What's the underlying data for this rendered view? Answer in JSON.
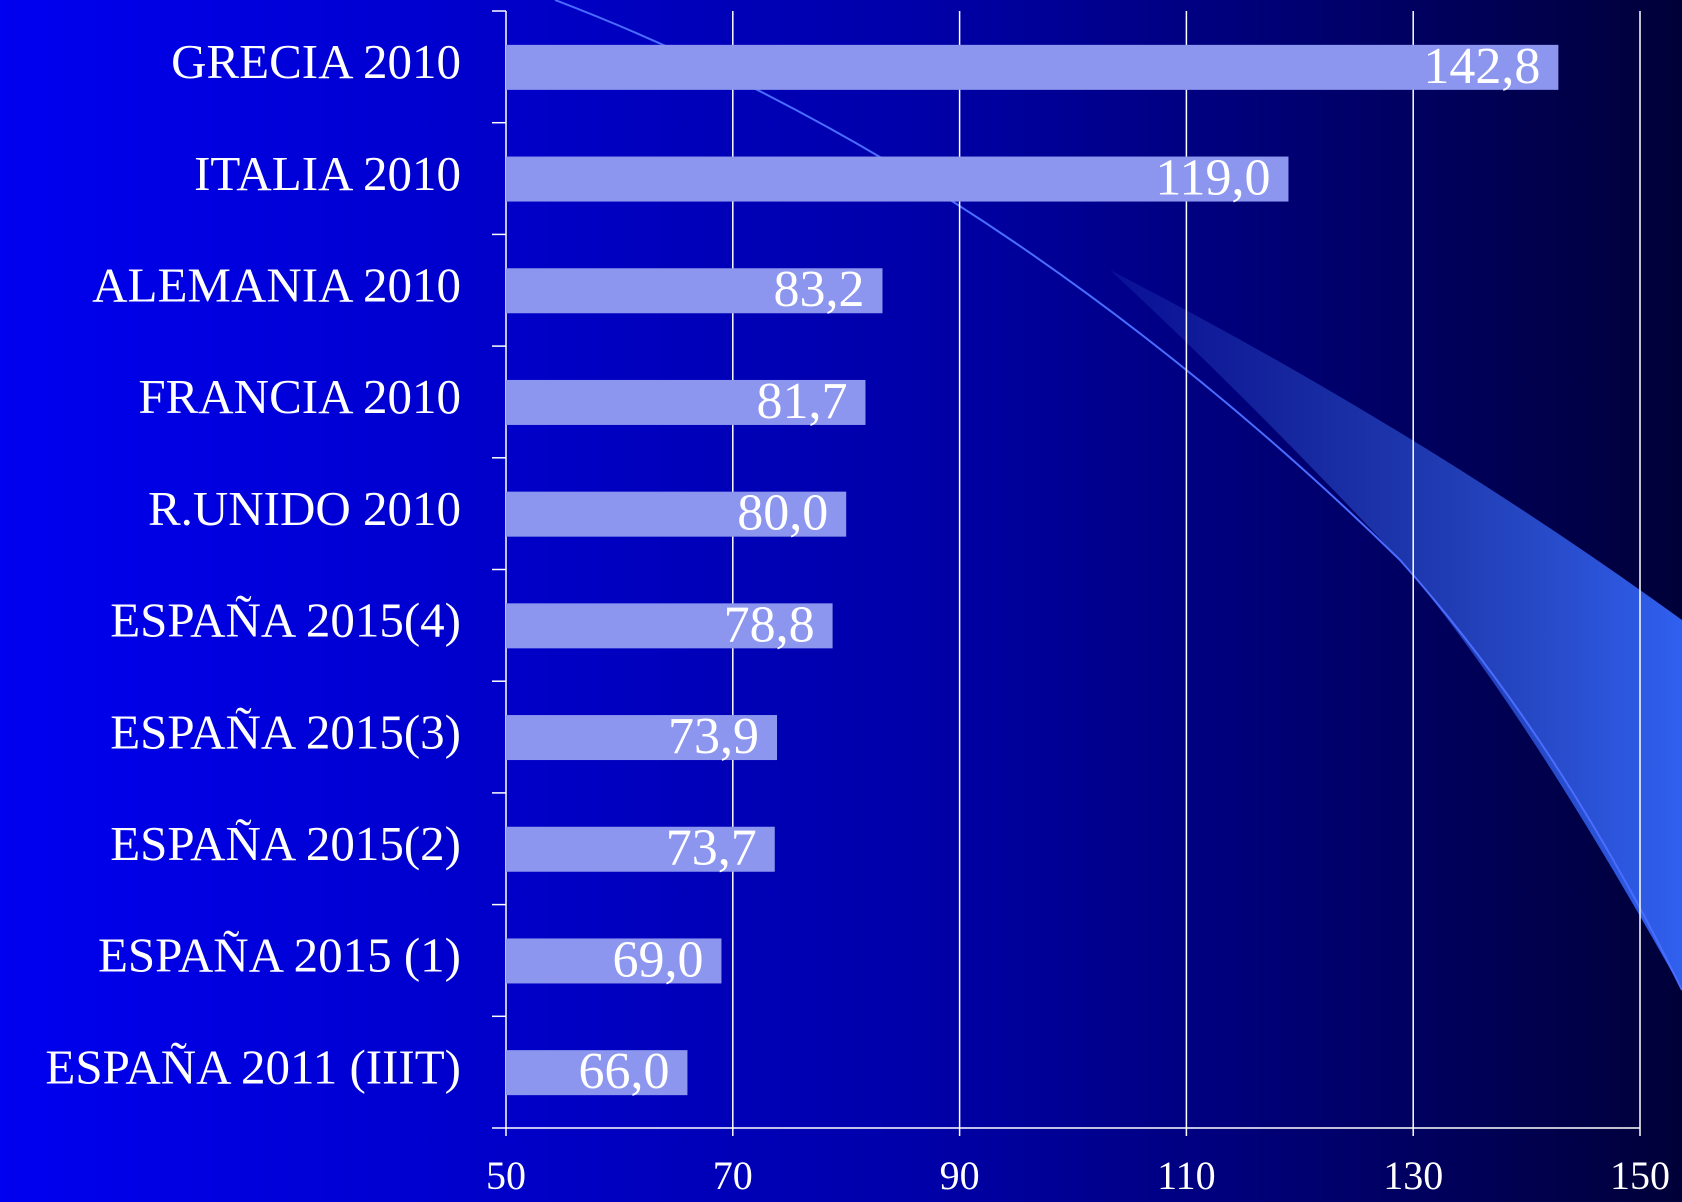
{
  "chart_data": {
    "type": "bar",
    "orientation": "horizontal",
    "categories": [
      "GRECIA 2010",
      "ITALIA 2010",
      "ALEMANIA 2010",
      "FRANCIA 2010",
      "R.UNIDO 2010",
      "ESPAÑA 2015(4)",
      "ESPAÑA 2015(3)",
      "ESPAÑA 2015(2)",
      "ESPAÑA 2015 (1)",
      "ESPAÑA 2011 (IIIT)"
    ],
    "values": [
      142.8,
      119.0,
      83.2,
      81.7,
      80.0,
      78.8,
      73.9,
      73.7,
      69.0,
      66.0
    ],
    "value_labels": [
      "142,8",
      "119,0",
      "83,2",
      "81,7",
      "80,0",
      "78,8",
      "73,9",
      "73,7",
      "69,0",
      "66,0"
    ],
    "color": "#8c96ee",
    "xlim": [
      50,
      150
    ],
    "xticks": [
      50,
      70,
      90,
      110,
      130,
      150
    ],
    "grid": true
  }
}
